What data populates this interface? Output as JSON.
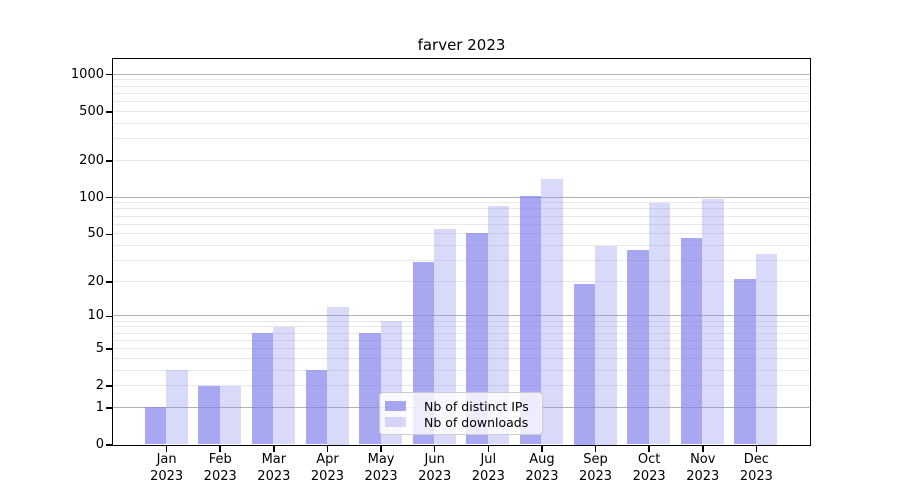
{
  "chart_data": {
    "type": "bar",
    "title": "farver 2023",
    "months": [
      "Jan",
      "Feb",
      "Mar",
      "Apr",
      "May",
      "Jun",
      "Jul",
      "Aug",
      "Sep",
      "Oct",
      "Nov",
      "Dec"
    ],
    "year": "2023",
    "series": [
      {
        "name": "Nb of distinct IPs",
        "color": "#8282ec",
        "alpha": 0.7,
        "values": [
          1,
          2,
          7,
          3,
          7,
          29,
          51,
          103,
          19,
          37,
          46,
          21
        ]
      },
      {
        "name": "Nb of downloads",
        "color": "#8282ec",
        "alpha": 0.3,
        "values": [
          3,
          2,
          8,
          12,
          9,
          55,
          84,
          140,
          40,
          90,
          97,
          34
        ]
      }
    ],
    "yscale": "log1p",
    "y_ticks": [
      0,
      1,
      2,
      5,
      10,
      20,
      50,
      100,
      200,
      500,
      1000
    ],
    "ylim": [
      0,
      1320
    ],
    "grid": true,
    "legend_position": "lower center"
  },
  "colors": {
    "background": "#ffffff",
    "axis": "#000000",
    "text": "#000000",
    "grid_major": "#b3b3b3",
    "grid_minor": "#e8e8e8",
    "legend_border": "#cccccc",
    "bar_dark_rendered": "#a6a6f3",
    "bar_light_rendered": "#dbdbf9"
  }
}
